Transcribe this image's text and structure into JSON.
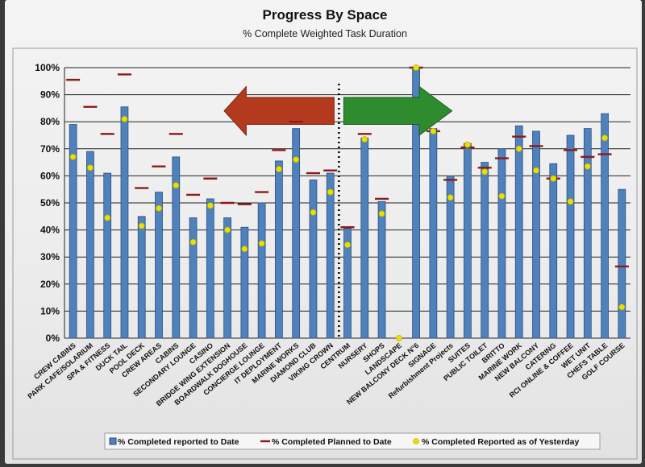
{
  "chart_data": {
    "type": "bar",
    "title": "Progress By Space",
    "subtitle": "% Complete Weighted Task Duration",
    "ylim": [
      0,
      100
    ],
    "yticks": [
      "0%",
      "10%",
      "20%",
      "30%",
      "40%",
      "50%",
      "60%",
      "70%",
      "80%",
      "90%",
      "100%"
    ],
    "grid": true,
    "legend_position": "bottom",
    "colors": {
      "bar": "#4f81bd",
      "bar_edge": "#2c4f7c",
      "planned": "#8b1a1a",
      "yesterday": "#e8e000",
      "arrow_left": "#b33a1c",
      "arrow_right": "#2e8b2e"
    },
    "categories": [
      "CREW CABINS",
      "PARK CAFE/SOLARIUM",
      "SPA & FITNESS",
      "DUCK TAIL",
      "POOL DECK",
      "CREW AREAS",
      "CABINS",
      "SECONDARY LOUNGE",
      "CASINO",
      "BRIDGE WING EXTENSION",
      "BOARDWALK DOGHOUSE",
      "CONCIERGE LOUNGE",
      "IT DEPLOYMENT",
      "MARINE WORKS",
      "DIAMOND CLUB",
      "VIKING CROWN",
      "CENTRUM",
      "NURSERY",
      "SHOPS",
      "LANDSCAPE",
      "NEW BALCONY DECK N°6",
      "SIGNAGE",
      "Refurbishment Projects",
      "SUITES",
      "PUBLIC TOILET",
      "BRITTO",
      "MARINE WORK",
      "NEW BALCONY",
      "CATERING",
      "RCI ONLINE & COFFEE",
      "WET UNIT",
      "CHEFS TABLE",
      "GOLF COURSE"
    ],
    "series": [
      {
        "name": "% Completed reported to Date",
        "type": "bar",
        "values": [
          79,
          69,
          61,
          85.5,
          45,
          54,
          67,
          44.5,
          51.5,
          44.5,
          41,
          50,
          65.5,
          77.5,
          58.5,
          61,
          40.5,
          74,
          50.5,
          0,
          100,
          77.5,
          60,
          72,
          65,
          70,
          78.5,
          76.5,
          64.5,
          75,
          77.5,
          83,
          55
        ]
      },
      {
        "name": "% Completed Planned to Date",
        "type": "marker-dash",
        "values": [
          95.5,
          85.5,
          75.5,
          97.5,
          55.5,
          63.5,
          75.5,
          53,
          59,
          50,
          49.5,
          54,
          69.5,
          80,
          61,
          62,
          41,
          75.5,
          51.5,
          null,
          100,
          76.5,
          58.5,
          70.5,
          63,
          66.5,
          74.5,
          71,
          59,
          69.5,
          67,
          68,
          26.5
        ]
      },
      {
        "name": "% Completed Reported as of Yesterday",
        "type": "marker-dot",
        "values": [
          67,
          63,
          44.5,
          81,
          41.5,
          48,
          56.5,
          35.5,
          49,
          40,
          33,
          35,
          62.5,
          66,
          46.5,
          54,
          34.5,
          73.5,
          46,
          0,
          100,
          76.5,
          52,
          71.5,
          61.5,
          52.5,
          70,
          62,
          59,
          50.5,
          63.5,
          74,
          11.5
        ]
      }
    ],
    "legend": [
      "% Completed reported to Date",
      "% Completed Planned to Date",
      "% Completed Reported as of Yesterday"
    ]
  }
}
